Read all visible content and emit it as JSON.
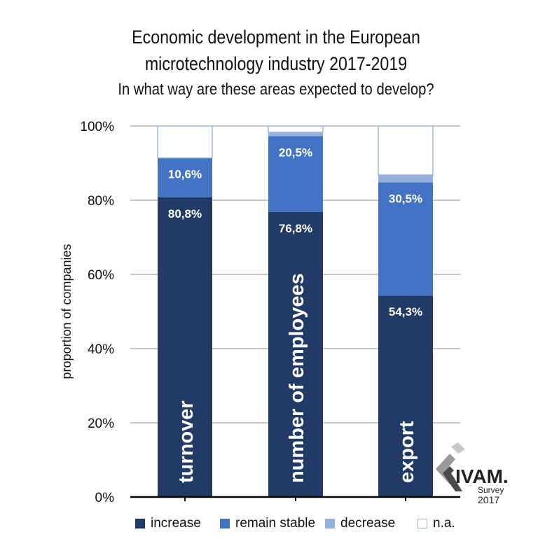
{
  "title": {
    "line1": "Economic development in the European",
    "line2": "microtechnology industry 2017-2019",
    "subtitle": "In what way are these areas expected to develop?"
  },
  "logo": {
    "brand": "IVAM.",
    "line2": "Survey",
    "year": "2017"
  },
  "colors": {
    "increase": "#213a66",
    "remain_stable": "#4273c4",
    "decrease": "#94b1de",
    "na": "#ffffff",
    "na_border": "#9db7e2",
    "grid": "#a6a6a6",
    "axis": "#000000"
  },
  "chart_data": {
    "type": "bar",
    "stacked": true,
    "ylabel": "proportion of companies",
    "ylim": [
      0,
      100
    ],
    "yticks": [
      "0%",
      "20%",
      "40%",
      "60%",
      "80%",
      "100%"
    ],
    "categories": [
      "turnover",
      "number of employees",
      "export"
    ],
    "series": [
      {
        "name": "increase",
        "values": [
          80.8,
          76.8,
          54.3
        ],
        "labels": [
          "80,8%",
          "76,8%",
          "54,3%"
        ]
      },
      {
        "name": "remain stable",
        "values": [
          10.6,
          20.5,
          30.5
        ],
        "labels": [
          "10,6%",
          "20,5%",
          "30,5%"
        ]
      },
      {
        "name": "decrease",
        "values": [
          0,
          1.0,
          2.0
        ],
        "labels": [
          "",
          "",
          ""
        ]
      },
      {
        "name": "n.a.",
        "values": [
          8.6,
          1.7,
          13.2
        ],
        "labels": [
          "",
          "",
          ""
        ]
      }
    ],
    "grid": true,
    "legend": "bottom"
  }
}
